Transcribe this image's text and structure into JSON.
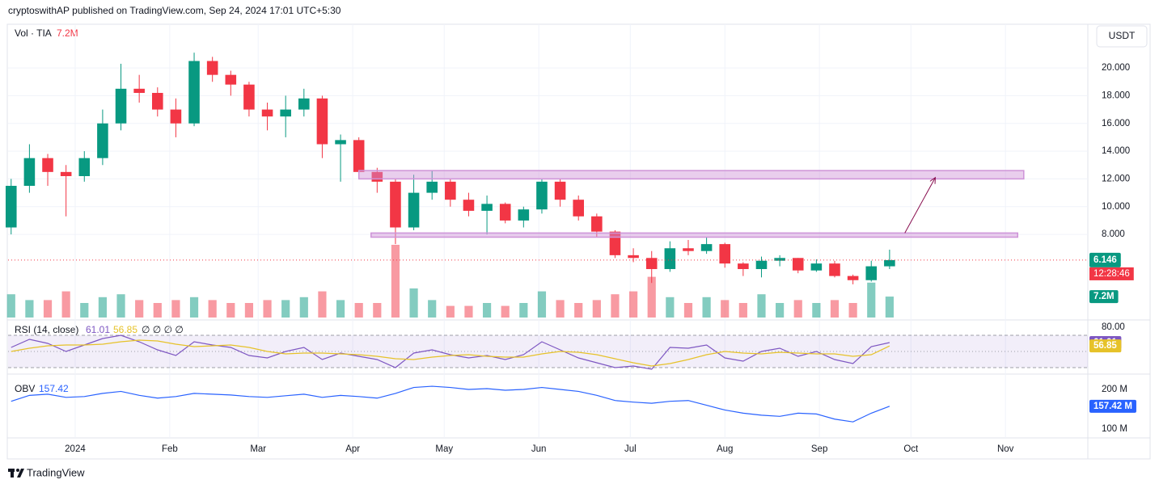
{
  "header": {
    "publisher": "cryptoswithAP published on TradingView.com, Sep 24, 2024 17:01 UTC+5:30"
  },
  "footer": {
    "brand": "TradingView"
  },
  "currency": "USDT",
  "countdown": "12:28:46",
  "chart_data": [
    {
      "type": "candlestick",
      "x": [
        -21,
        -15,
        -9,
        -3,
        3,
        9,
        15,
        21,
        27,
        33,
        39,
        45,
        51,
        57,
        63,
        69,
        75,
        81,
        87,
        93,
        99,
        105,
        111,
        117,
        123,
        129,
        135,
        141,
        147,
        153,
        159,
        165,
        171,
        177,
        183,
        189,
        195,
        201,
        207,
        213,
        219,
        225,
        231,
        237,
        243,
        249,
        255,
        261,
        267
      ],
      "open": [
        8.5,
        11.5,
        13.5,
        12.5,
        12.2,
        13.5,
        16,
        18.5,
        18.2,
        17,
        16,
        20.5,
        19.5,
        18.8,
        17,
        16.5,
        17,
        17.8,
        14.5,
        14.8,
        12.5,
        11.8,
        8.5,
        11,
        11.8,
        10.5,
        9.7,
        10.2,
        9,
        9.8,
        11.8,
        10.5,
        9.3,
        8.2,
        6.5,
        6.3,
        5.5,
        7,
        6.8,
        7.3,
        5.9,
        5.5,
        6.1,
        6.3,
        5.4,
        5.9,
        5,
        4.7,
        5.7
      ],
      "high": [
        12,
        14.5,
        13.8,
        13,
        14,
        17,
        20.3,
        19.5,
        18.6,
        17.8,
        21.1,
        20.8,
        19.8,
        19,
        17.5,
        18,
        18.5,
        18,
        15.2,
        15,
        12.8,
        12,
        12.3,
        12.6,
        12,
        11,
        10.8,
        10.3,
        10,
        12,
        12,
        10.8,
        9.5,
        8.3,
        7,
        6.8,
        7.5,
        7.6,
        7.8,
        7.4,
        6,
        6.4,
        6.5,
        6.3,
        6.2,
        6.1,
        5.1,
        6.1,
        6.9
      ],
      "low": [
        8,
        11,
        11.5,
        9.3,
        11.8,
        13,
        15.5,
        17.5,
        16.5,
        15,
        15.8,
        19,
        18,
        16.5,
        15.5,
        15,
        16.5,
        13.5,
        11.8,
        12,
        11,
        7.3,
        8.3,
        10.5,
        10,
        9.3,
        8,
        8.8,
        8.5,
        9.5,
        10,
        9,
        7.8,
        6.3,
        6,
        4.5,
        5.3,
        6.5,
        6.6,
        5.6,
        5,
        4.9,
        5.7,
        5.2,
        5.3,
        4.9,
        4.4,
        4.6,
        5.5
      ],
      "close": [
        11.5,
        13.5,
        12.5,
        12.2,
        13.5,
        16,
        18.5,
        18.2,
        17,
        16,
        20.5,
        19.5,
        18.8,
        17,
        16.5,
        17,
        17.8,
        14.5,
        14.8,
        12.5,
        11.8,
        8.5,
        11,
        11.8,
        10.5,
        9.7,
        10.2,
        9,
        9.8,
        11.8,
        10.5,
        9.3,
        8.2,
        6.5,
        6.3,
        5.5,
        7,
        6.8,
        7.3,
        5.9,
        5.5,
        6.1,
        6.3,
        5.4,
        5.9,
        5,
        4.7,
        5.7,
        6.146
      ],
      "up_color": "#089981",
      "down_color": "#f23645",
      "xlim": [
        -22,
        332
      ],
      "xticks": [
        {
          "value": 0,
          "label": "2024"
        },
        {
          "value": 31,
          "label": "Feb"
        },
        {
          "value": 60,
          "label": "Mar"
        },
        {
          "value": 91,
          "label": "Apr"
        },
        {
          "value": 121,
          "label": "May"
        },
        {
          "value": 152,
          "label": "Jun"
        },
        {
          "value": 182,
          "label": "Jul"
        },
        {
          "value": 213,
          "label": "Aug"
        },
        {
          "value": 244,
          "label": "Sep"
        },
        {
          "value": 274,
          "label": "Oct"
        },
        {
          "value": 305,
          "label": "Nov"
        }
      ],
      "ylim": [
        1.89,
        23.15
      ],
      "yticks": [
        {
          "value": 8,
          "label": "8.000"
        },
        {
          "value": 10,
          "label": "10.000"
        },
        {
          "value": 12,
          "label": "12.000"
        },
        {
          "value": 14,
          "label": "14.000"
        },
        {
          "value": 16,
          "label": "16.000"
        },
        {
          "value": 18,
          "label": "18.000"
        },
        {
          "value": 20,
          "label": "20.000"
        }
      ],
      "grid": true,
      "zones": [
        {
          "x": [
            93,
            311
          ],
          "y": [
            12,
            12.6
          ]
        },
        {
          "x": [
            97,
            309
          ],
          "y": [
            7.8,
            8.1
          ]
        }
      ],
      "zone_color": "#ce93d8",
      "arrow": {
        "x": [
          272,
          282
        ],
        "y": [
          8.1,
          12.1
        ],
        "color": "#880e4f"
      }
    },
    {
      "type": "bar",
      "title": "Vol · TIA",
      "values": [
        8,
        6,
        6,
        9,
        5,
        7,
        8,
        6,
        5,
        6,
        7,
        6,
        5,
        5,
        6,
        6,
        7,
        9,
        6,
        5,
        5,
        25,
        10,
        6,
        4,
        4,
        5,
        4,
        5,
        9,
        6,
        5,
        6,
        8,
        9,
        14,
        7,
        5,
        7,
        6,
        5,
        8,
        5,
        6,
        5,
        6,
        5,
        12,
        7.2
      ],
      "last_label": "7.2M",
      "ylim": [
        0,
        25
      ]
    },
    {
      "type": "line",
      "title": "RSI (14, close)",
      "extra": "∅ ∅ ∅ ∅",
      "series": [
        {
          "color": "#7e57c2",
          "values": [
            55,
            65,
            60,
            50,
            58,
            66,
            70,
            62,
            52,
            45,
            62,
            58,
            55,
            45,
            42,
            50,
            55,
            40,
            48,
            44,
            40,
            30,
            48,
            52,
            46,
            42,
            45,
            40,
            46,
            62,
            52,
            42,
            36,
            30,
            32,
            28,
            55,
            54,
            58,
            42,
            38,
            50,
            54,
            44,
            50,
            40,
            35,
            56,
            61.01
          ]
        },
        {
          "color": "#e6c229",
          "values": [
            50,
            54,
            57,
            58,
            58,
            59,
            62,
            64,
            63,
            59,
            56,
            57,
            58,
            55,
            50,
            47,
            48,
            48,
            47,
            46,
            44,
            41,
            40,
            43,
            45,
            46,
            44,
            43,
            43,
            47,
            50,
            49,
            46,
            41,
            36,
            32,
            35,
            40,
            46,
            50,
            48,
            47,
            49,
            48,
            47,
            47,
            44,
            46,
            56.85
          ]
        }
      ],
      "bands": [
        30,
        50,
        70
      ],
      "ylim": [
        23,
        87
      ],
      "yticks": [
        {
          "value": 80,
          "label": "80.00"
        }
      ]
    },
    {
      "type": "line",
      "title": "OBV",
      "series": [
        {
          "color": "#2962ff",
          "values": [
            170,
            185,
            188,
            180,
            182,
            190,
            195,
            185,
            178,
            182,
            190,
            188,
            186,
            182,
            180,
            184,
            188,
            180,
            185,
            182,
            178,
            190,
            205,
            208,
            205,
            200,
            202,
            198,
            200,
            205,
            200,
            195,
            185,
            172,
            168,
            165,
            170,
            172,
            160,
            148,
            140,
            135,
            132,
            140,
            138,
            125,
            118,
            140,
            157.42
          ]
        }
      ],
      "last_label": "157.42 M",
      "ylim": [
        81.6,
        234.7
      ],
      "yticks": [
        {
          "value": 100,
          "label": "100 M"
        },
        {
          "value": 200,
          "label": "200 M"
        }
      ]
    }
  ]
}
